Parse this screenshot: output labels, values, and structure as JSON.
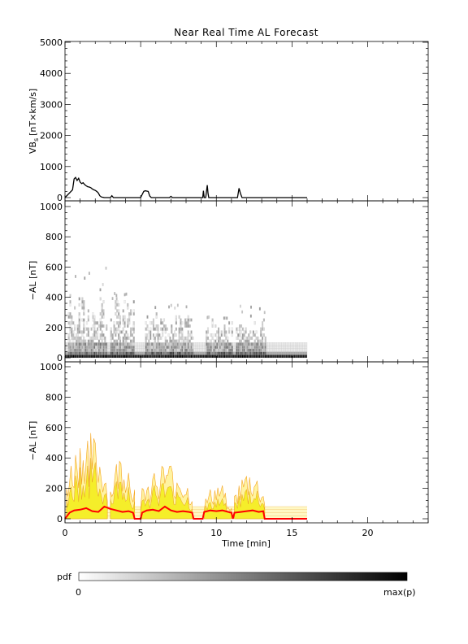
{
  "figure": {
    "title": "Near Real Time AL Forecast"
  },
  "chart_data": [
    {
      "type": "line",
      "title": "Near Real Time AL Forecast",
      "ylabel_main": "VB",
      "ylabel_sub": "s",
      "ylabel_unit": "[nT×km/s]",
      "xlim": [
        0,
        24
      ],
      "ylim": [
        0,
        5000
      ],
      "y_ticks": [
        "0",
        "1000",
        "2000",
        "3000",
        "4000",
        "5000"
      ],
      "series": [
        {
          "color": "#000000",
          "x": [
            0.0,
            0.5,
            0.6,
            0.7,
            0.8,
            0.9,
            1.0,
            1.1,
            1.2,
            1.3,
            1.4,
            1.5,
            1.6,
            1.7,
            1.8,
            1.9,
            2.0,
            2.1,
            2.2,
            2.3,
            2.4,
            2.6,
            3.0,
            3.1,
            3.2,
            3.4,
            5.0,
            5.2,
            5.3,
            5.5,
            5.6,
            5.7,
            6.9,
            7.0,
            7.1,
            9.1,
            9.15,
            9.2,
            9.3,
            9.4,
            9.45,
            9.5,
            11.4,
            11.5,
            11.6,
            11.7,
            16.0
          ],
          "y": [
            0,
            250,
            600,
            650,
            550,
            620,
            500,
            450,
            480,
            420,
            380,
            350,
            340,
            320,
            280,
            250,
            230,
            200,
            150,
            60,
            20,
            0,
            0,
            60,
            0,
            0,
            0,
            200,
            220,
            200,
            50,
            0,
            0,
            40,
            0,
            0,
            220,
            0,
            0,
            400,
            150,
            0,
            0,
            300,
            120,
            0,
            0
          ]
        }
      ]
    },
    {
      "type": "heatmap",
      "ylabel": "−AL [nT]",
      "xlim": [
        0,
        24
      ],
      "ylim": [
        0,
        1000
      ],
      "y_ticks": [
        "0",
        "200",
        "400",
        "600",
        "800",
        "1000"
      ],
      "x_range": [
        0,
        16
      ],
      "color_scale": [
        "#ffffff",
        "#000000"
      ],
      "bands": [
        {
          "x_from": 0.2,
          "x_to": 2.8,
          "max": 420,
          "peak": 600
        },
        {
          "x_from": 3.0,
          "x_to": 4.6,
          "max": 380,
          "peak": 420
        },
        {
          "x_from": 5.2,
          "x_to": 8.4,
          "max": 300,
          "peak": 340
        },
        {
          "x_from": 9.2,
          "x_to": 11.0,
          "max": 250,
          "peak": 260
        },
        {
          "x_from": 11.2,
          "x_to": 13.2,
          "max": 260,
          "peak": 340
        }
      ]
    },
    {
      "type": "area",
      "ylabel": "−AL [nT]",
      "xlim": [
        0,
        24
      ],
      "ylim": [
        0,
        1000
      ],
      "y_ticks": [
        "0",
        "200",
        "400",
        "600",
        "800",
        "1000"
      ],
      "x_ticks": [
        "0",
        "5",
        "10",
        "15",
        "20"
      ],
      "xlabel": "Time [min]",
      "series": [
        {
          "color": "#ff0000",
          "x": [
            0.0,
            0.3,
            0.6,
            1.0,
            1.4,
            1.8,
            2.2,
            2.6,
            3.0,
            3.4,
            3.8,
            4.2,
            4.5,
            4.6,
            5.0,
            5.1,
            5.4,
            5.8,
            6.2,
            6.6,
            7.0,
            7.4,
            7.8,
            8.2,
            8.4,
            8.5,
            9.1,
            9.2,
            9.6,
            10.0,
            10.4,
            10.8,
            11.0,
            11.1,
            11.2,
            11.6,
            12.0,
            12.4,
            12.8,
            13.1,
            13.2,
            16.0
          ],
          "y": [
            0,
            40,
            55,
            60,
            70,
            50,
            45,
            80,
            65,
            55,
            45,
            50,
            40,
            0,
            0,
            40,
            55,
            60,
            50,
            80,
            55,
            45,
            50,
            45,
            40,
            0,
            0,
            45,
            55,
            50,
            55,
            45,
            40,
            0,
            40,
            45,
            50,
            55,
            45,
            50,
            0,
            0
          ]
        }
      ],
      "bands": [
        {
          "x_from": 0.1,
          "x_to": 2.8,
          "upper": 580
        },
        {
          "x_from": 3.0,
          "x_to": 4.6,
          "upper": 450
        },
        {
          "x_from": 5.0,
          "x_to": 8.4,
          "upper": 380
        },
        {
          "x_from": 9.2,
          "x_to": 11.0,
          "upper": 240
        },
        {
          "x_from": 11.2,
          "x_to": 13.2,
          "upper": 330
        }
      ]
    }
  ],
  "colorbar": {
    "label": "pdf",
    "min_label": "0",
    "max_label": "max(p)",
    "colors": [
      "#ffffff",
      "#000000"
    ]
  }
}
